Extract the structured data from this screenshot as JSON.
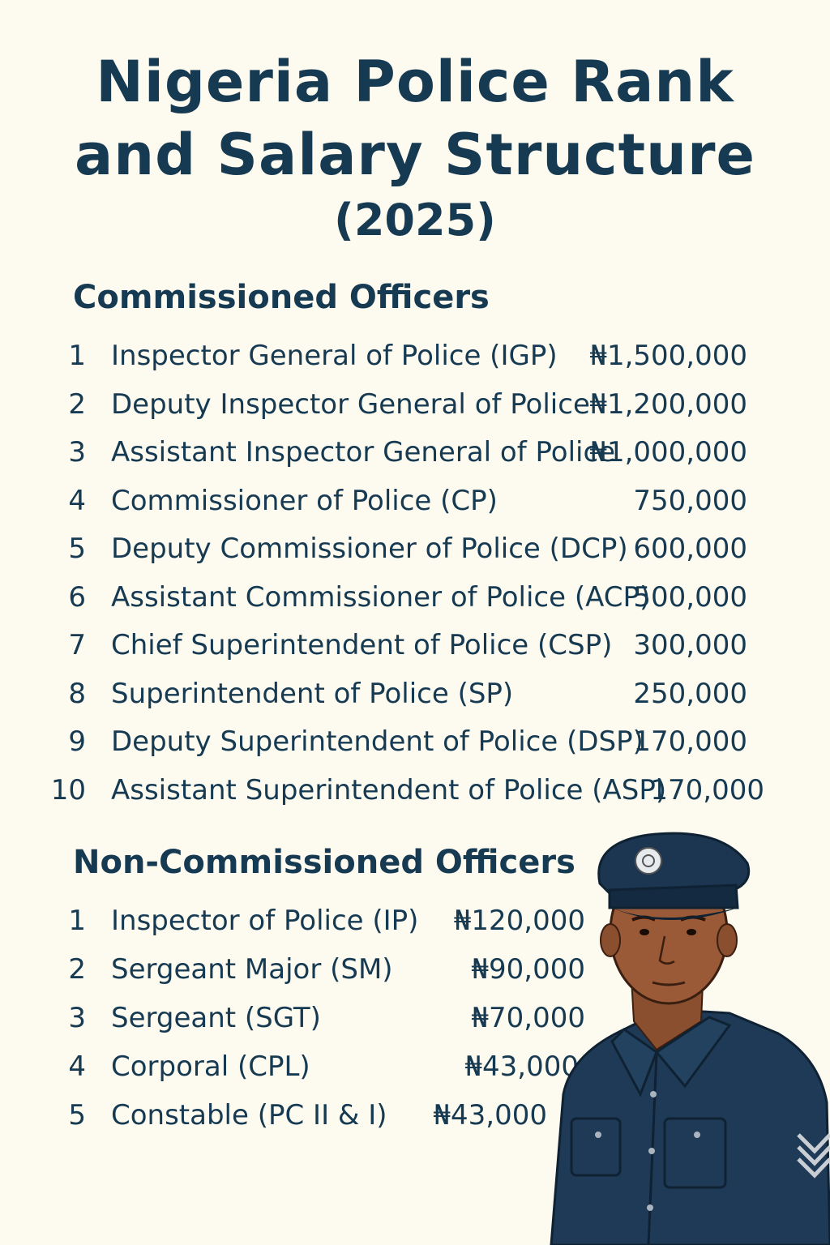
{
  "title": {
    "line1": "Nigeria Police Rank",
    "line2": "and Salary Structure",
    "line3": "(2025)"
  },
  "commissioned": {
    "heading": "Commissioned Officers",
    "rows": [
      {
        "num": "1",
        "rank": "Inspector General of Police (IGP)",
        "salary": "₦1,500,000"
      },
      {
        "num": "2",
        "rank": "Deputy Inspector General of Police",
        "salary": "₦1,200,000"
      },
      {
        "num": "3",
        "rank": "Assistant Inspector General of Police",
        "salary": "₦1,000,000"
      },
      {
        "num": "4",
        "rank": "Commissioner of Police (CP)",
        "salary": "750,000"
      },
      {
        "num": "5",
        "rank": "Deputy Commissioner of Police (DCP)",
        "salary": "600,000"
      },
      {
        "num": "6",
        "rank": "Assistant Commissioner of Police (ACP)",
        "salary": "500,000"
      },
      {
        "num": "7",
        "rank": "Chief Superintendent of Police (CSP)",
        "salary": "300,000"
      },
      {
        "num": "8",
        "rank": "Superintendent of Police (SP)",
        "salary": "250,000"
      },
      {
        "num": "9",
        "rank": "Deputy Superintendent of Police (DSP)",
        "salary": "170,000"
      },
      {
        "num": "10",
        "rank": "Assistant Superintendent of Police (ASP)",
        "salary": "170,000"
      }
    ]
  },
  "non_commissioned": {
    "heading": "Non-Commissioned Officers",
    "rows": [
      {
        "num": "1",
        "rank": "Inspector of Police (IP)",
        "salary": "₦120,000"
      },
      {
        "num": "2",
        "rank": "Sergeant Major (SM)",
        "salary": "₦90,000"
      },
      {
        "num": "3",
        "rank": "Sergeant (SGT)",
        "salary": "₦70,000"
      },
      {
        "num": "4",
        "rank": "Corporal (CPL)",
        "salary": "₦43,000"
      },
      {
        "num": "5",
        "rank": "Constable (PC II & I)",
        "salary": "₦43,000"
      }
    ]
  },
  "colors": {
    "background": "#fdfaf0",
    "text": "#163a52",
    "uniform": "#1f3a56",
    "skin": "#9a5a37"
  },
  "illustration": "police-officer-illustration"
}
